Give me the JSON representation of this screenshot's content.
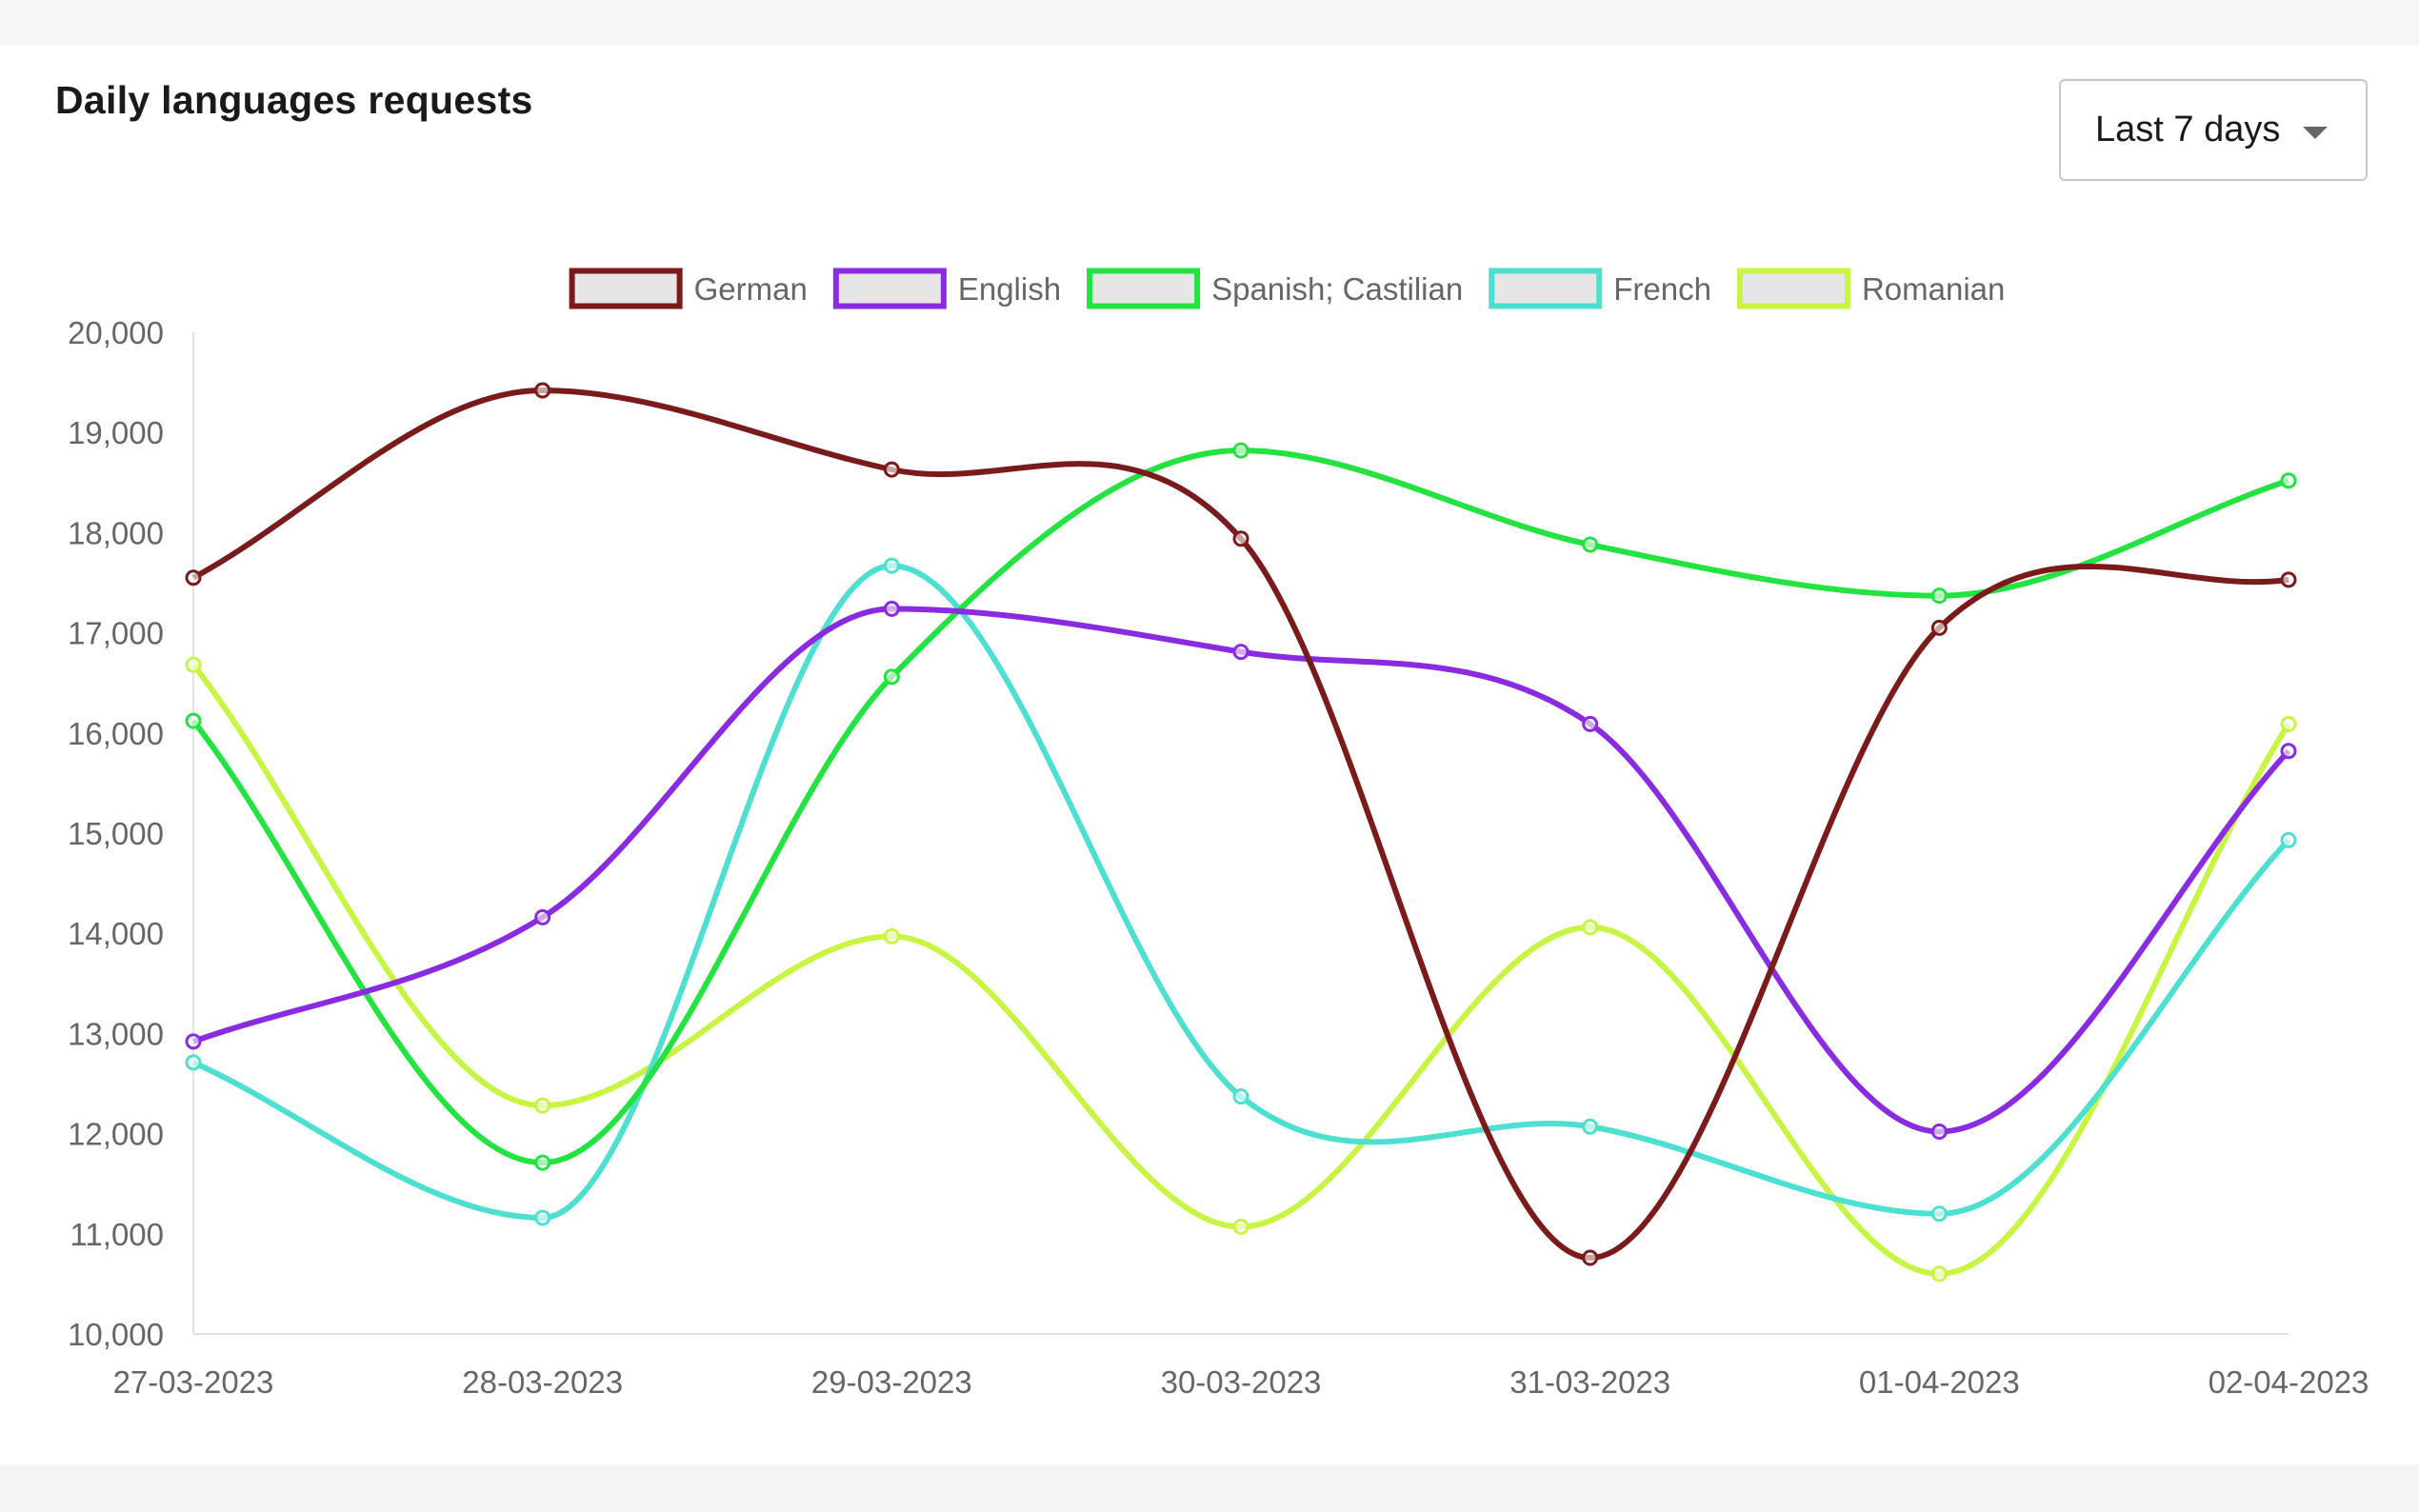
{
  "header": {
    "title": "Daily languages requests",
    "range_select": {
      "value": "Last 7 days",
      "caret": "chevron-down-icon"
    }
  },
  "chart_data": {
    "type": "line",
    "categories": [
      "27-03-2023",
      "28-03-2023",
      "29-03-2023",
      "30-03-2023",
      "31-03-2023",
      "01-04-2023",
      "02-04-2023"
    ],
    "series": [
      {
        "name": "German",
        "color": "#7a1a1a",
        "values": [
          17550,
          19420,
          18630,
          17940,
          10760,
          17050,
          17530
        ]
      },
      {
        "name": "English",
        "color": "#8a2be2",
        "values": [
          12920,
          14160,
          17240,
          16810,
          16090,
          12020,
          15820
        ]
      },
      {
        "name": "Spanish; Castilian",
        "color": "#22e33f",
        "values": [
          16120,
          11710,
          16560,
          18820,
          17880,
          17370,
          18520
        ]
      },
      {
        "name": "French",
        "color": "#4ddfd0",
        "values": [
          12710,
          11160,
          17670,
          12370,
          12070,
          11200,
          14930
        ]
      },
      {
        "name": "Romanian",
        "color": "#c6f542",
        "values": [
          16680,
          12280,
          13970,
          11070,
          14060,
          10600,
          16090
        ]
      }
    ],
    "ylim": [
      10000,
      20000
    ],
    "yticks": [
      "10,000",
      "11,000",
      "12,000",
      "13,000",
      "14,000",
      "15,000",
      "16,000",
      "17,000",
      "18,000",
      "19,000",
      "20,000"
    ],
    "grid": false,
    "legend": "top"
  }
}
